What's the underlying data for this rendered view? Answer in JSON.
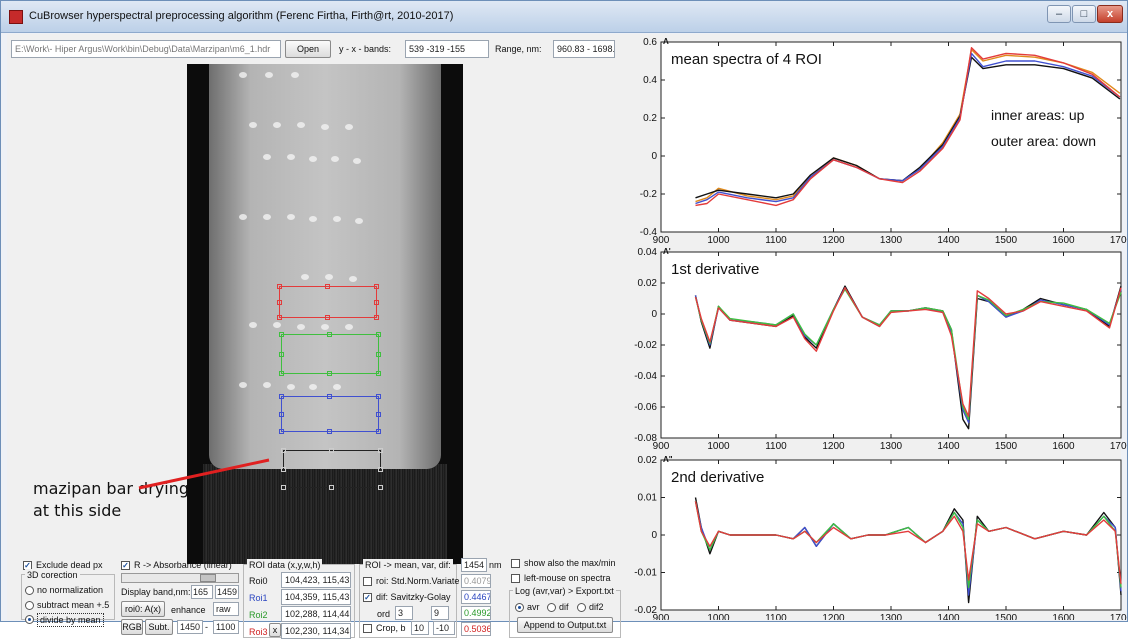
{
  "window": {
    "title": "CuBrowser hyperspectral preprocessing algorithm (Ferenc Firtha, Firth@rt, 2010-2017)",
    "minimize": "–",
    "maximize": "□",
    "close": "x"
  },
  "toolbar": {
    "file_path": "E:\\Work\\- Hiper Argus\\Work\\bin\\Debug\\Data\\Marzipan\\m6_1.hdr",
    "open_label": "Open",
    "bands_label": "y - x - bands:",
    "bands_value": "539 -319 -155",
    "range_label": "Range, nm:",
    "range_value": "960.83 - 1698.97"
  },
  "image_annotation": {
    "line1": "mazipan bar drying",
    "line2": "at this side"
  },
  "controls": {
    "exclude_dead_px": "Exclude dead px",
    "correction_group": "3D corection",
    "no_normalization": "no normalization",
    "subtract_mean": "subtract mean +.5",
    "divide_by_mean": "divide by mean",
    "r_absorbance": "R -> Absorbance (linear)",
    "display_band": "Display band,nm:",
    "band1": "165",
    "band2": "1459",
    "roi_btn": "roi0: A(x)",
    "enhance": "enhance",
    "raw": "raw",
    "rgb_btn": "RGB",
    "subt_btn": "Subt.",
    "subt_from": "1450",
    "subt_dash": "-",
    "subt_to": "1100",
    "roi_group": "ROI data (x,y,w,h)",
    "roi_names": [
      "Roi0",
      "Roi1",
      "Roi2",
      "Roi3"
    ],
    "roi_values": [
      "104,423, 115,43",
      "104,359, 115,43",
      "102,288, 114,44",
      "102,230, 114,34"
    ],
    "roi_x": "x",
    "mean_group": "ROI -> mean, var, dif:",
    "wavelength": "1454",
    "nm": "nm",
    "snv": "roi: Std.Norm.Variate",
    "savgol": "dif: Savitzky-Golay",
    "ord": "ord",
    "ord_value": "3",
    "win_value": "9",
    "crop": "Crop, b",
    "crop_from": "10",
    "crop_to": "-10",
    "value_list": [
      "0.4079",
      "0.4467",
      "0.4992",
      "0.5036"
    ],
    "show_maxmin": "show also the max/min",
    "left_mouse": "left-mouse on spectra",
    "log_label": "Log (avr,var) > Export.txt",
    "avr": "avr",
    "dif": "dif",
    "dif2": "dif2",
    "append_btn": "Append to Output.txt"
  },
  "colors": {
    "roi0": "#e33b3b",
    "roi1": "#3fbf3f",
    "roi2": "#4050d0",
    "roi3": "#222222",
    "orange": "#e08a1c",
    "black": "#111111"
  },
  "chart_data": [
    {
      "type": "line",
      "title": "mean spectra of 4 ROI",
      "ylabel": "A",
      "annotations": [
        "inner areas: up",
        "outer area: down"
      ],
      "x": [
        960,
        980,
        1000,
        1050,
        1100,
        1130,
        1160,
        1200,
        1240,
        1280,
        1320,
        1350,
        1390,
        1420,
        1440,
        1460,
        1500,
        1550,
        1600,
        1650,
        1698
      ],
      "xlim": [
        900,
        1700
      ],
      "ylim": [
        -0.4,
        0.6
      ],
      "xticks": [
        900,
        1000,
        1100,
        1200,
        1300,
        1400,
        1500,
        1600,
        1700
      ],
      "yticks": [
        -0.4,
        -0.2,
        0,
        0.2,
        0.4,
        0.6
      ],
      "series": [
        {
          "color": "#e08a1c",
          "values": [
            -0.24,
            -0.22,
            -0.17,
            -0.21,
            -0.23,
            -0.21,
            -0.11,
            -0.01,
            -0.05,
            -0.12,
            -0.13,
            -0.07,
            0.07,
            0.22,
            0.56,
            0.5,
            0.53,
            0.52,
            0.49,
            0.44,
            0.33
          ]
        },
        {
          "color": "#111111",
          "values": [
            -0.22,
            -0.2,
            -0.18,
            -0.2,
            -0.22,
            -0.2,
            -0.1,
            -0.01,
            -0.05,
            -0.12,
            -0.13,
            -0.06,
            0.06,
            0.21,
            0.52,
            0.46,
            0.48,
            0.48,
            0.46,
            0.41,
            0.3
          ]
        },
        {
          "color": "#4050d0",
          "values": [
            -0.25,
            -0.23,
            -0.19,
            -0.22,
            -0.24,
            -0.22,
            -0.11,
            -0.02,
            -0.06,
            -0.12,
            -0.13,
            -0.07,
            0.05,
            0.2,
            0.54,
            0.47,
            0.5,
            0.5,
            0.47,
            0.42,
            0.31
          ]
        },
        {
          "color": "#e33b3b",
          "values": [
            -0.26,
            -0.25,
            -0.2,
            -0.23,
            -0.26,
            -0.23,
            -0.12,
            -0.02,
            -0.06,
            -0.12,
            -0.14,
            -0.08,
            0.04,
            0.19,
            0.57,
            0.51,
            0.54,
            0.53,
            0.49,
            0.43,
            0.31
          ]
        }
      ]
    },
    {
      "type": "line",
      "title": "1st derivative",
      "ylabel": "A'",
      "x": [
        960,
        970,
        985,
        1000,
        1020,
        1060,
        1100,
        1130,
        1150,
        1170,
        1200,
        1220,
        1250,
        1280,
        1300,
        1330,
        1360,
        1390,
        1405,
        1425,
        1435,
        1450,
        1470,
        1500,
        1530,
        1560,
        1600,
        1640,
        1680,
        1700
      ],
      "xlim": [
        900,
        1700
      ],
      "ylim": [
        -0.08,
        0.04
      ],
      "xticks": [
        900,
        1000,
        1100,
        1200,
        1300,
        1400,
        1500,
        1600,
        1700
      ],
      "yticks": [
        -0.08,
        -0.06,
        -0.04,
        -0.02,
        0,
        0.02,
        0.04
      ],
      "series": [
        {
          "color": "#111111",
          "values": [
            0.012,
            -0.005,
            -0.022,
            0.005,
            -0.004,
            -0.006,
            -0.008,
            -0.001,
            -0.015,
            -0.022,
            0.003,
            0.018,
            -0.002,
            -0.008,
            0.002,
            0.002,
            0.004,
            0.002,
            -0.01,
            -0.068,
            -0.074,
            0.01,
            0.008,
            -0.002,
            0.003,
            0.01,
            0.006,
            0.003,
            -0.008,
            0.018
          ]
        },
        {
          "color": "#4050d0",
          "values": [
            0.012,
            -0.004,
            -0.02,
            0.004,
            -0.004,
            -0.005,
            -0.007,
            0.0,
            -0.014,
            -0.02,
            0.003,
            0.017,
            -0.002,
            -0.007,
            0.002,
            0.002,
            0.004,
            0.001,
            -0.012,
            -0.062,
            -0.07,
            0.012,
            0.008,
            -0.002,
            0.002,
            0.009,
            0.006,
            0.003,
            -0.007,
            0.016
          ]
        },
        {
          "color": "#3fbf3f",
          "values": [
            0.011,
            -0.004,
            -0.019,
            0.005,
            -0.003,
            -0.005,
            -0.007,
            0.0,
            -0.013,
            -0.02,
            0.003,
            0.016,
            -0.002,
            -0.007,
            0.002,
            0.002,
            0.004,
            0.002,
            -0.01,
            -0.06,
            -0.068,
            0.012,
            0.009,
            -0.001,
            0.003,
            0.008,
            0.007,
            0.003,
            -0.006,
            0.014
          ]
        },
        {
          "color": "#e33b3b",
          "values": [
            0.011,
            -0.003,
            -0.018,
            0.004,
            -0.004,
            -0.006,
            -0.008,
            -0.002,
            -0.016,
            -0.024,
            0.002,
            0.017,
            -0.002,
            -0.008,
            0.001,
            0.002,
            0.003,
            0.001,
            -0.014,
            -0.058,
            -0.066,
            0.015,
            0.01,
            0.0,
            0.002,
            0.008,
            0.005,
            0.002,
            -0.009,
            0.017
          ]
        }
      ]
    },
    {
      "type": "line",
      "title": "2nd derivative",
      "ylabel": "A\"",
      "x": [
        960,
        970,
        985,
        1000,
        1020,
        1060,
        1100,
        1130,
        1150,
        1170,
        1200,
        1230,
        1260,
        1290,
        1330,
        1360,
        1390,
        1410,
        1425,
        1435,
        1450,
        1470,
        1500,
        1550,
        1600,
        1640,
        1670,
        1690,
        1700
      ],
      "xlim": [
        900,
        1700
      ],
      "ylim": [
        -0.02,
        0.02
      ],
      "xticks": [
        900,
        1000,
        1100,
        1200,
        1300,
        1400,
        1500,
        1600,
        1700
      ],
      "yticks": [
        -0.02,
        -0.01,
        0,
        0.01,
        0.02
      ],
      "series": [
        {
          "color": "#111111",
          "values": [
            0.01,
            0.002,
            -0.005,
            0.001,
            0.0,
            0.0,
            0.0,
            -0.001,
            0.002,
            -0.003,
            0.003,
            -0.001,
            0.0,
            0.0,
            0.002,
            -0.002,
            0.001,
            0.007,
            0.004,
            -0.018,
            0.005,
            0.001,
            0.002,
            -0.001,
            0.001,
            0.0,
            0.006,
            0.002,
            -0.016
          ]
        },
        {
          "color": "#4050d0",
          "values": [
            0.009,
            0.002,
            -0.004,
            0.001,
            0.0,
            0.0,
            0.0,
            -0.001,
            0.002,
            -0.003,
            0.003,
            -0.001,
            0.0,
            0.0,
            0.002,
            -0.002,
            0.001,
            0.006,
            0.003,
            -0.016,
            0.004,
            0.001,
            0.002,
            -0.001,
            0.001,
            0.0,
            0.005,
            0.002,
            -0.015
          ]
        },
        {
          "color": "#3fbf3f",
          "values": [
            0.009,
            0.001,
            -0.004,
            0.001,
            0.0,
            0.0,
            0.0,
            -0.001,
            0.001,
            -0.002,
            0.003,
            -0.001,
            0.0,
            0.0,
            0.002,
            -0.002,
            0.001,
            0.006,
            0.002,
            -0.014,
            0.004,
            0.001,
            0.002,
            -0.001,
            0.001,
            0.0,
            0.005,
            0.001,
            -0.014
          ]
        },
        {
          "color": "#e33b3b",
          "values": [
            0.009,
            0.001,
            -0.003,
            0.001,
            0.0,
            0.0,
            0.0,
            -0.001,
            0.001,
            -0.002,
            0.002,
            -0.001,
            0.0,
            0.0,
            0.001,
            -0.002,
            0.001,
            0.005,
            0.001,
            -0.012,
            0.003,
            0.001,
            0.002,
            -0.001,
            0.001,
            0.0,
            0.004,
            0.001,
            -0.013
          ]
        }
      ]
    }
  ]
}
